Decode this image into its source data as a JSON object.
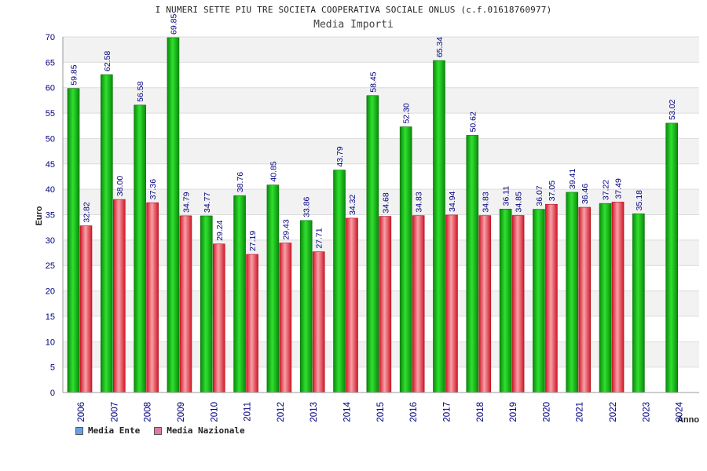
{
  "header": {
    "title": "I NUMERI SETTE PIU TRE SOCIETA COOPERATIVA SOCIALE ONLUS (c.f.01618760977)",
    "subtitle": "Media Importi"
  },
  "legend": {
    "items": [
      {
        "label": "Media Ente",
        "color": "#6aa0e0"
      },
      {
        "label": "Media Nazionale",
        "color": "#e07aa8"
      }
    ]
  },
  "colors": {
    "ente_bar": "#0aa30a",
    "nazionale_bar": "#e8303a",
    "label_text": "#000080",
    "band": "#f2f2f2"
  },
  "chart_data": {
    "type": "bar",
    "title": "Media Importi",
    "xlabel": "Anno",
    "ylabel": "Euro",
    "ylim": [
      0,
      70
    ],
    "yticks": [
      0,
      5,
      10,
      15,
      20,
      25,
      30,
      35,
      40,
      45,
      50,
      55,
      60,
      65,
      70
    ],
    "grid": true,
    "legend_position": "bottom-left",
    "categories": [
      "2006",
      "2007",
      "2008",
      "2009",
      "2010",
      "2011",
      "2012",
      "2013",
      "2014",
      "2015",
      "2016",
      "2017",
      "2018",
      "2019",
      "2020",
      "2021",
      "2022",
      "2023",
      "2024"
    ],
    "series": [
      {
        "name": "Media Ente",
        "values": [
          59.85,
          62.58,
          56.58,
          69.85,
          34.77,
          38.76,
          40.85,
          33.86,
          43.79,
          58.45,
          52.3,
          65.34,
          50.62,
          36.11,
          36.07,
          39.41,
          37.22,
          35.18,
          53.02
        ],
        "labels": [
          "59.85",
          "62.58",
          "56.58",
          "69.85",
          "34.77",
          "38.76",
          "40.85",
          "33.86",
          "43.79",
          "58.45",
          "52.30",
          "65.34",
          "50.62",
          "36.11",
          "36.07",
          "39.41",
          "37.22",
          "35.18",
          "53.02"
        ]
      },
      {
        "name": "Media Nazionale",
        "values": [
          32.82,
          38.0,
          37.36,
          34.79,
          29.24,
          27.19,
          29.43,
          27.71,
          34.32,
          34.68,
          34.83,
          34.94,
          34.83,
          34.85,
          37.05,
          36.46,
          37.49,
          null,
          null
        ],
        "labels": [
          "32.82",
          "38.00",
          "37.36",
          "34.79",
          "29.24",
          "27.19",
          "29.43",
          "27.71",
          "34.32",
          "34.68",
          "34.83",
          "34.94",
          "34.83",
          "34.85",
          "37.05",
          "36.46",
          "37.49",
          null,
          null
        ]
      }
    ]
  }
}
